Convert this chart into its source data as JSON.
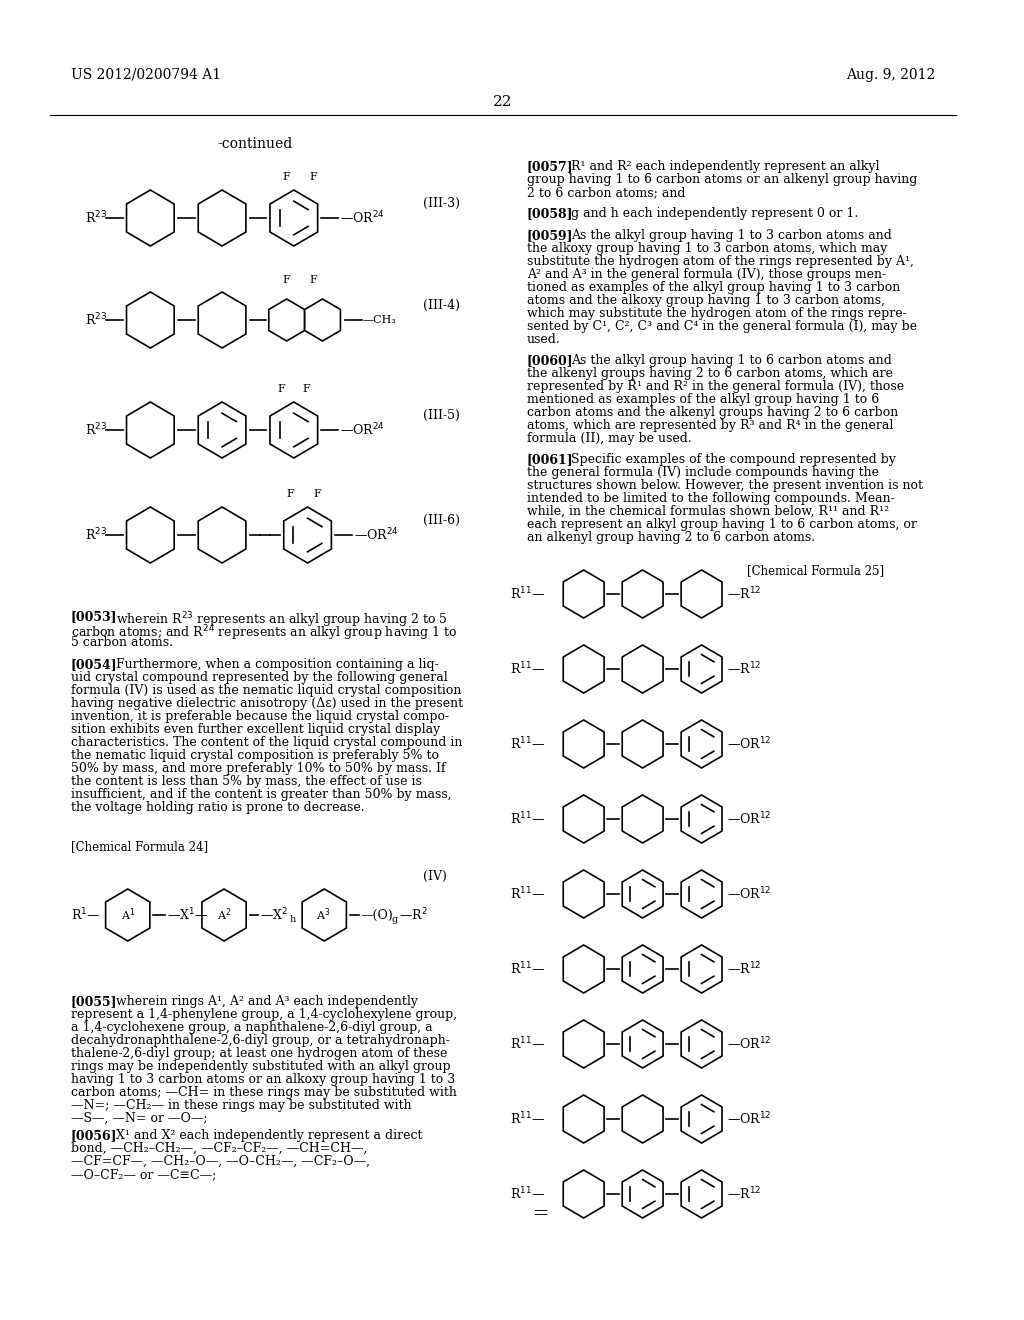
{
  "page_number": "22",
  "left_header": "US 2012/0200794 A1",
  "right_header": "Aug. 9, 2012",
  "background_color": "#ffffff",
  "text_color": "#000000",
  "figsize": [
    10.24,
    13.2
  ],
  "dpi": 100
}
